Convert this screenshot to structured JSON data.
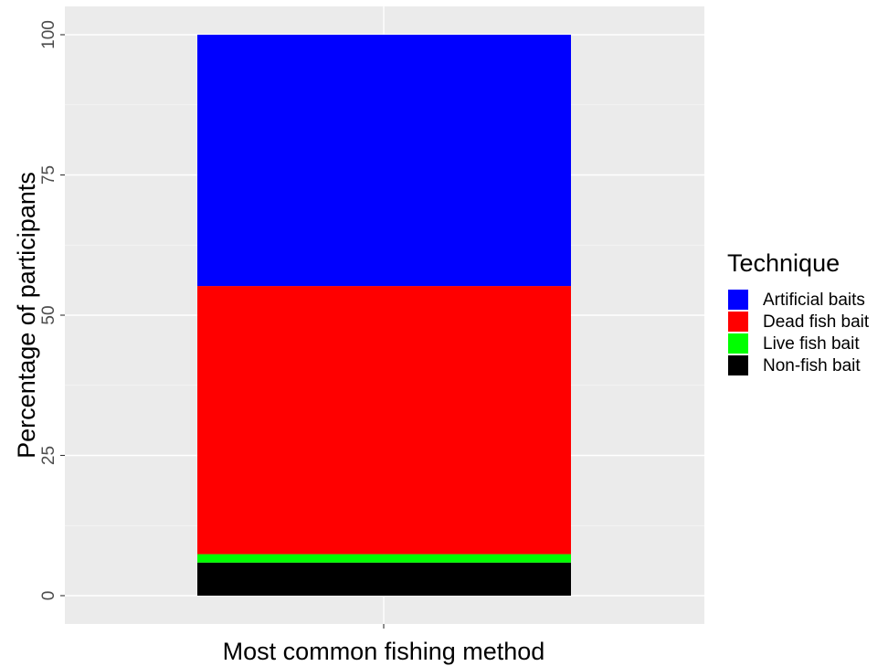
{
  "chart_data": {
    "type": "bar",
    "stacked": true,
    "categories": [
      ""
    ],
    "xlabel": "Most common fishing method",
    "ylabel": "Percentage of participants",
    "ylim": [
      0,
      100
    ],
    "yticks": [
      0,
      25,
      50,
      75,
      100
    ],
    "grid": true,
    "legend": {
      "title": "Technique",
      "placement": "right"
    },
    "series": [
      {
        "name": "Artificial baits",
        "color": "#0000ff",
        "values": [
          44.8
        ]
      },
      {
        "name": "Dead fish bait",
        "color": "#ff0000",
        "values": [
          47.8
        ]
      },
      {
        "name": "Live fish bait",
        "color": "#00ff00",
        "values": [
          1.5
        ]
      },
      {
        "name": "Non-fish bait",
        "color": "#000000",
        "values": [
          5.9
        ]
      }
    ]
  }
}
